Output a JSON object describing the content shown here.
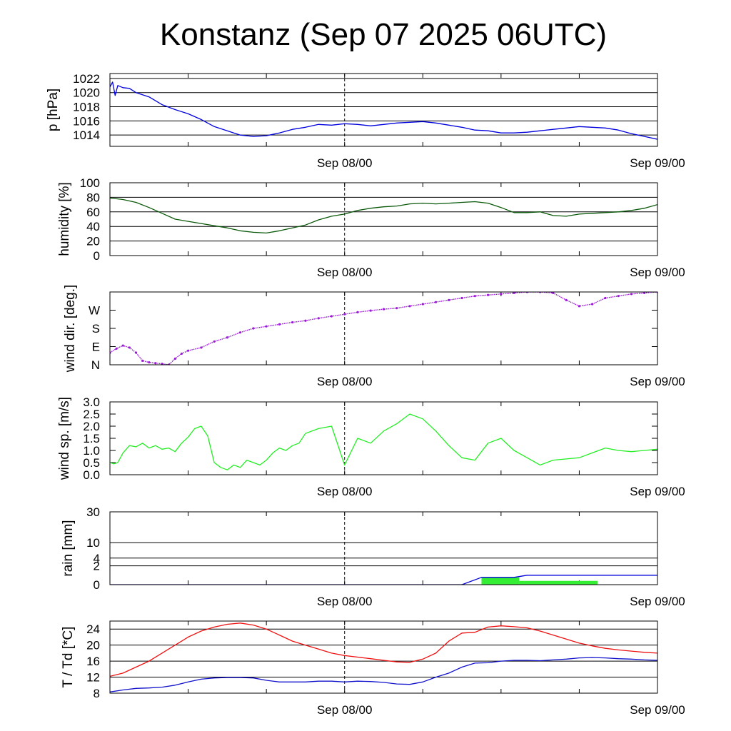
{
  "title": "Konstanz (Sep 07 2025 06UTC)",
  "colors": {
    "pressure": "#0000dd",
    "humidity": "#0a5a0a",
    "wind_dir": "#9a1ad8",
    "wind_speed": "#22ee22",
    "rain_total": "#0000dd",
    "rain_bar": "#33ee33",
    "temperature": "#ee1111",
    "dewpoint": "#1111cc",
    "grid": "#000000"
  },
  "chart_data": [
    {
      "id": "pressure",
      "type": "line",
      "ylabel": "p [hPa]",
      "ylim": [
        1012.4,
        1022.7
      ],
      "yticks": [
        {
          "v": 1014,
          "label": "1014"
        },
        {
          "v": 1016,
          "label": "1016"
        },
        {
          "v": 1018,
          "label": "1018"
        },
        {
          "v": 1020,
          "label": "1020"
        },
        {
          "v": 1022,
          "label": "1022"
        }
      ],
      "grid": true,
      "xlim": [
        0,
        42
      ],
      "xticks": [
        {
          "v": 18,
          "label": "Sep 08/00"
        },
        {
          "v": 42,
          "label": "Sep 09/00"
        }
      ],
      "series": [
        {
          "color_key": "pressure",
          "x": [
            0,
            0.2,
            0.4,
            0.6,
            1,
            1.5,
            2,
            3,
            4,
            5,
            6,
            7,
            8,
            9,
            10,
            11,
            12,
            13,
            14,
            15,
            16,
            17,
            18,
            19,
            20,
            21,
            22,
            23,
            24,
            25,
            26,
            27,
            28,
            29,
            30,
            31,
            32,
            33,
            34,
            35,
            36,
            37,
            38,
            39,
            40,
            41,
            42
          ],
          "y": [
            1020.8,
            1021.5,
            1019.6,
            1021.0,
            1020.7,
            1020.6,
            1020.0,
            1019.4,
            1018.3,
            1017.6,
            1017.0,
            1016.2,
            1015.2,
            1014.6,
            1014.0,
            1013.8,
            1013.9,
            1014.3,
            1014.8,
            1015.1,
            1015.5,
            1015.4,
            1015.6,
            1015.5,
            1015.3,
            1015.5,
            1015.7,
            1015.8,
            1015.9,
            1015.7,
            1015.4,
            1015.1,
            1014.7,
            1014.6,
            1014.3,
            1014.3,
            1014.4,
            1014.6,
            1014.8,
            1015.0,
            1015.2,
            1015.1,
            1015.0,
            1014.7,
            1014.2,
            1013.8,
            1013.4
          ]
        }
      ]
    },
    {
      "id": "humidity",
      "type": "line",
      "ylabel": "humidity [%]",
      "ylim": [
        0,
        100
      ],
      "yticks": [
        {
          "v": 0,
          "label": "0"
        },
        {
          "v": 20,
          "label": "20"
        },
        {
          "v": 40,
          "label": "40"
        },
        {
          "v": 60,
          "label": "60"
        },
        {
          "v": 80,
          "label": "80"
        },
        {
          "v": 100,
          "label": "100"
        }
      ],
      "grid": true,
      "xlim": [
        0,
        42
      ],
      "xticks": [
        {
          "v": 18,
          "label": "Sep 08/00"
        },
        {
          "v": 42,
          "label": "Sep 09/00"
        }
      ],
      "series": [
        {
          "color_key": "humidity",
          "x": [
            0,
            1,
            2,
            3,
            4,
            5,
            6,
            7,
            8,
            9,
            10,
            11,
            12,
            13,
            14,
            15,
            16,
            17,
            18,
            19,
            20,
            21,
            22,
            23,
            24,
            25,
            26,
            27,
            28,
            29,
            30,
            31,
            32,
            33,
            34,
            35,
            36,
            37,
            38,
            39,
            40,
            41,
            42
          ],
          "y": [
            79,
            77,
            73,
            66,
            58,
            50,
            47,
            44,
            41,
            38,
            34,
            32,
            31,
            34,
            38,
            42,
            49,
            54,
            57,
            62,
            65,
            67,
            68,
            71,
            72,
            71,
            72,
            73,
            74,
            72,
            66,
            59,
            59,
            60,
            55,
            54,
            57,
            58,
            59,
            60,
            62,
            65,
            70
          ]
        }
      ]
    },
    {
      "id": "wind_dir",
      "type": "scatter",
      "ylabel": "wind dir. [deg.]",
      "ylim": [
        0,
        360
      ],
      "yticks": [
        {
          "v": 0,
          "label": "N"
        },
        {
          "v": 90,
          "label": "E"
        },
        {
          "v": 180,
          "label": "S"
        },
        {
          "v": 270,
          "label": "W"
        }
      ],
      "grid": false,
      "xlim": [
        0,
        42
      ],
      "xticks": [
        {
          "v": 18,
          "label": "Sep 08/00"
        },
        {
          "v": 42,
          "label": "Sep 09/00"
        }
      ],
      "series": [
        {
          "color_key": "wind_dir",
          "x": [
            0,
            0.5,
            1,
            1.5,
            2,
            2.5,
            3,
            3.5,
            4,
            4.5,
            5,
            5.5,
            6,
            7,
            8,
            9,
            10,
            11,
            12,
            13,
            14,
            15,
            16,
            17,
            18,
            19,
            20,
            21,
            22,
            23,
            24,
            25,
            26,
            27,
            28,
            29,
            30,
            31,
            32,
            33,
            34,
            35,
            36,
            37,
            38,
            39,
            40,
            41,
            42
          ],
          "y": [
            60,
            80,
            95,
            85,
            60,
            20,
            12,
            8,
            5,
            0,
            30,
            55,
            70,
            85,
            115,
            135,
            160,
            180,
            190,
            200,
            210,
            218,
            230,
            240,
            250,
            260,
            268,
            275,
            280,
            290,
            300,
            310,
            320,
            330,
            340,
            345,
            350,
            355,
            360,
            360,
            355,
            320,
            290,
            300,
            330,
            340,
            350,
            355,
            360
          ]
        }
      ]
    },
    {
      "id": "wind_speed",
      "type": "line",
      "ylabel": "wind sp. [m/s]",
      "ylim": [
        0,
        3.0
      ],
      "yticks": [
        {
          "v": 0,
          "label": "0.0"
        },
        {
          "v": 0.5,
          "label": "0.5"
        },
        {
          "v": 1.0,
          "label": "1.0"
        },
        {
          "v": 1.5,
          "label": "1.5"
        },
        {
          "v": 2.0,
          "label": "2.0"
        },
        {
          "v": 2.5,
          "label": "2.5"
        },
        {
          "v": 3.0,
          "label": "3.0"
        }
      ],
      "grid": false,
      "xlim": [
        0,
        42
      ],
      "xticks": [
        {
          "v": 18,
          "label": "Sep 08/00"
        },
        {
          "v": 42,
          "label": "Sep 09/00"
        }
      ],
      "series": [
        {
          "color_key": "wind_speed",
          "x": [
            0,
            0.3,
            0.6,
            1,
            1.5,
            2,
            2.5,
            3,
            3.5,
            4,
            4.5,
            5,
            5.5,
            6,
            6.5,
            7,
            7.5,
            8,
            8.5,
            9,
            9.5,
            10,
            10.5,
            11,
            11.5,
            12,
            12.5,
            13,
            13.5,
            14,
            14.5,
            15,
            16,
            17,
            18,
            19,
            20,
            21,
            22,
            23,
            24,
            25,
            26,
            27,
            28,
            29,
            30,
            31,
            32,
            33,
            34,
            35,
            36,
            37,
            38,
            39,
            40,
            41,
            42
          ],
          "y": [
            0.5,
            0.45,
            0.5,
            0.9,
            1.2,
            1.15,
            1.3,
            1.1,
            1.2,
            1.05,
            1.1,
            0.95,
            1.3,
            1.55,
            1.9,
            2.0,
            1.6,
            0.5,
            0.3,
            0.2,
            0.4,
            0.3,
            0.6,
            0.5,
            0.4,
            0.6,
            0.9,
            1.1,
            1.0,
            1.2,
            1.3,
            1.7,
            1.9,
            2.0,
            0.4,
            1.5,
            1.3,
            1.8,
            2.1,
            2.5,
            2.3,
            1.8,
            1.2,
            0.7,
            0.6,
            1.3,
            1.5,
            1.0,
            0.7,
            0.4,
            0.6,
            0.65,
            0.7,
            0.9,
            1.1,
            1.0,
            0.95,
            1.0,
            1.05
          ]
        }
      ]
    },
    {
      "id": "rain",
      "type": "area",
      "ylabel": "rain [mm]",
      "ylim": [
        0,
        30
      ],
      "scale": "sqrt",
      "yticks": [
        {
          "v": 0,
          "label": "0"
        },
        {
          "v": 2,
          "label": "2"
        },
        {
          "v": 4,
          "label": "4"
        },
        {
          "v": 10,
          "label": "10"
        },
        {
          "v": 30,
          "label": "30"
        }
      ],
      "grid": true,
      "xlim": [
        0,
        42
      ],
      "xticks": [
        {
          "v": 18,
          "label": "Sep 08/00"
        },
        {
          "v": 42,
          "label": "Sep 09/00"
        }
      ],
      "series": [
        {
          "color_key": "rain_total",
          "x": [
            0,
            27,
            28.5,
            31,
            32,
            42
          ],
          "y": [
            0,
            0,
            0.3,
            0.3,
            0.5,
            0.5
          ]
        }
      ],
      "bars": [
        {
          "x0": 28.5,
          "x1": 31.4,
          "y": 0.3
        },
        {
          "x0": 31.4,
          "x1": 37.4,
          "y": 0.08
        }
      ]
    },
    {
      "id": "temperature",
      "type": "line",
      "ylabel": "T / Td [*C]",
      "ylim": [
        8,
        26
      ],
      "yticks": [
        {
          "v": 8,
          "label": "8"
        },
        {
          "v": 12,
          "label": "12"
        },
        {
          "v": 16,
          "label": "16"
        },
        {
          "v": 20,
          "label": "20"
        },
        {
          "v": 24,
          "label": "24"
        }
      ],
      "grid": true,
      "xlim": [
        0,
        42
      ],
      "xticks": [
        {
          "v": 18,
          "label": "Sep 08/00"
        },
        {
          "v": 42,
          "label": "Sep 09/00"
        }
      ],
      "series": [
        {
          "color_key": "temperature",
          "x": [
            0,
            1,
            2,
            3,
            4,
            5,
            6,
            7,
            8,
            9,
            10,
            11,
            12,
            13,
            14,
            15,
            16,
            17,
            18,
            19,
            20,
            21,
            22,
            23,
            24,
            25,
            26,
            27,
            28,
            29,
            30,
            31,
            32,
            33,
            34,
            35,
            36,
            37,
            38,
            39,
            40,
            41,
            42
          ],
          "y": [
            12.2,
            13.0,
            14.5,
            16.0,
            18.0,
            20.0,
            22.0,
            23.5,
            24.5,
            25.2,
            25.5,
            25.0,
            24.0,
            22.5,
            21.0,
            20.0,
            19.0,
            18.0,
            17.4,
            17.0,
            16.6,
            16.2,
            15.8,
            15.7,
            16.5,
            18.0,
            21.0,
            23.0,
            23.2,
            24.5,
            24.8,
            24.6,
            24.3,
            23.5,
            22.5,
            21.5,
            20.5,
            19.8,
            19.2,
            18.8,
            18.5,
            18.2,
            18.0
          ]
        },
        {
          "color_key": "dewpoint",
          "x": [
            0,
            1,
            2,
            3,
            4,
            5,
            6,
            7,
            8,
            9,
            10,
            11,
            12,
            13,
            14,
            15,
            16,
            17,
            18,
            19,
            20,
            21,
            22,
            23,
            24,
            25,
            26,
            27,
            28,
            29,
            30,
            31,
            32,
            33,
            34,
            35,
            36,
            37,
            38,
            39,
            40,
            41,
            42
          ],
          "y": [
            8.3,
            8.8,
            9.2,
            9.3,
            9.5,
            10.0,
            10.8,
            11.5,
            11.8,
            11.9,
            11.9,
            11.8,
            11.2,
            10.8,
            10.8,
            10.8,
            11.0,
            11.0,
            10.8,
            11.0,
            10.9,
            10.7,
            10.3,
            10.2,
            10.8,
            12.0,
            13.0,
            14.5,
            15.5,
            15.6,
            16.0,
            16.2,
            16.2,
            16.1,
            16.3,
            16.5,
            16.8,
            16.9,
            16.8,
            16.6,
            16.5,
            16.3,
            16.2
          ]
        }
      ]
    }
  ]
}
